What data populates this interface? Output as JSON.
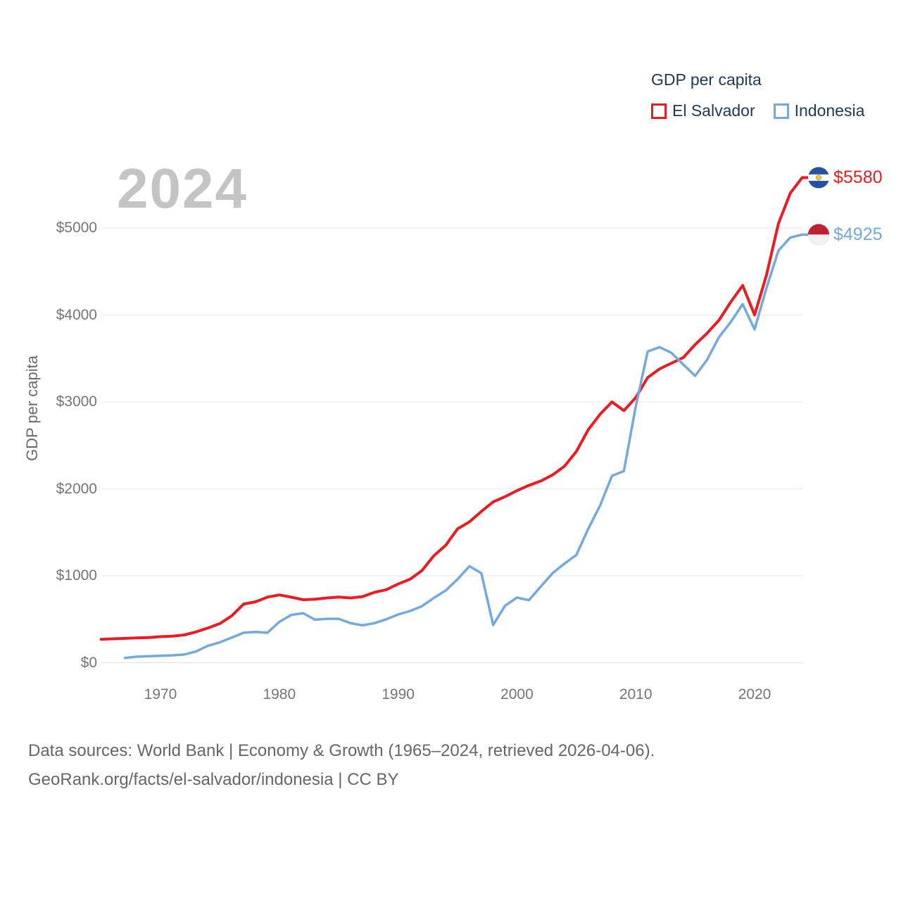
{
  "legend": {
    "title": "GDP per capita",
    "items": [
      {
        "label": "El Salvador",
        "color": "#ea1c21"
      },
      {
        "label": "Indonesia",
        "color": "#73a9dc"
      }
    ]
  },
  "watermark": "2024",
  "y_axis": {
    "title": "GDP per capita",
    "tick_labels": [
      "$0",
      "$1000",
      "$2000",
      "$3000",
      "$4000",
      "$5000"
    ],
    "tick_values": [
      0,
      1000,
      2000,
      3000,
      4000,
      5000
    ]
  },
  "x_axis": {
    "tick_labels": [
      "1970",
      "1980",
      "1990",
      "2000",
      "2010",
      "2020"
    ],
    "tick_values": [
      1970,
      1980,
      1990,
      2000,
      2010,
      2020
    ]
  },
  "end_labels": {
    "el_salvador": "$5580",
    "indonesia": "$4925"
  },
  "footer": {
    "line1": "Data sources: World Bank | Economy & Growth (1965–2024, retrieved 2026-04-06).",
    "line2": "GeoRank.org/facts/el-salvador/indonesia | CC BY"
  },
  "colors": {
    "el_salvador_red": "#ea1c21",
    "indonesia_blue": "#73a9dc",
    "grid": "#e9e9e9",
    "legend_text": "#1c3a57",
    "tick_text": "#757575",
    "watermark": "#c4c4c4",
    "footer_text": "#666666"
  },
  "chart_data": {
    "type": "line",
    "title": "GDP per capita",
    "xlabel": "",
    "ylabel": "GDP per capita",
    "x_range": [
      1965,
      2024
    ],
    "ylim": [
      0,
      5800
    ],
    "grid": true,
    "legend_position": "top-right",
    "series": [
      {
        "name": "El Salvador",
        "color": "#ea1c21",
        "flag": "el-salvador",
        "end_value_label": "$5580",
        "start_year": 1965,
        "values": [
          270,
          275,
          280,
          285,
          290,
          300,
          305,
          320,
          355,
          400,
          450,
          540,
          675,
          700,
          755,
          780,
          755,
          725,
          730,
          745,
          755,
          745,
          760,
          810,
          840,
          905,
          960,
          1060,
          1230,
          1350,
          1540,
          1620,
          1740,
          1850,
          1910,
          1980,
          2040,
          2090,
          2160,
          2260,
          2430,
          2680,
          2860,
          3000,
          2900,
          3050,
          3280,
          3380,
          3445,
          3510,
          3660,
          3790,
          3940,
          4150,
          4340,
          4000,
          4460,
          5050,
          5400,
          5580
        ]
      },
      {
        "name": "Indonesia",
        "color": "#73a9dc",
        "flag": "indonesia",
        "end_value_label": "$4925",
        "start_year": 1967,
        "values": [
          55,
          70,
          75,
          80,
          85,
          95,
          130,
          195,
          235,
          290,
          345,
          355,
          345,
          470,
          550,
          570,
          495,
          505,
          505,
          455,
          430,
          455,
          500,
          555,
          595,
          650,
          745,
          830,
          960,
          1110,
          1030,
          435,
          655,
          750,
          720,
          875,
          1030,
          1140,
          1240,
          1540,
          1810,
          2150,
          2205,
          2950,
          3580,
          3630,
          3565,
          3430,
          3300,
          3485,
          3745,
          3920,
          4125,
          3835,
          4310,
          4740,
          4890,
          4925
        ]
      }
    ]
  }
}
